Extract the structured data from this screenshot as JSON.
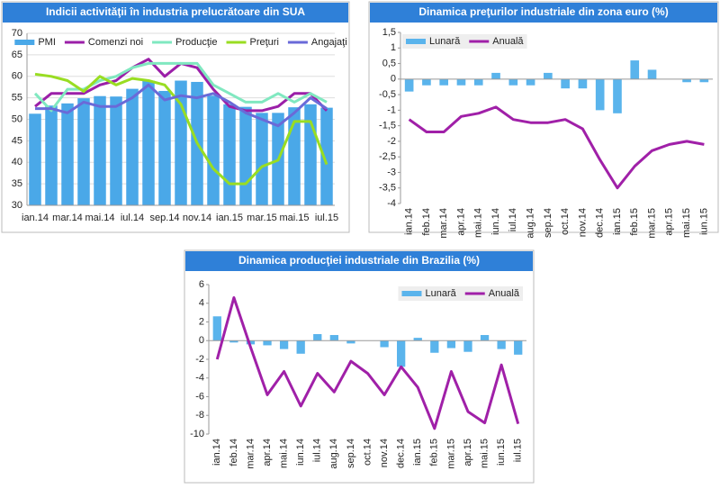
{
  "chart_data": [
    {
      "type": "combo",
      "title": "Indicii activităţii în industria prelucrătoare din SUA",
      "categories": [
        "ian.14",
        null,
        "mar.14",
        null,
        "mai.14",
        null,
        "iul.14",
        null,
        "sep.14",
        null,
        "nov.14",
        null,
        "ian.15",
        null,
        "mar.15",
        null,
        "mai.15",
        null,
        "iul.15"
      ],
      "series": [
        {
          "name": "PMI",
          "style": "bar",
          "color": "#4aa8e8",
          "values": [
            51.3,
            53.2,
            53.7,
            54.9,
            55.4,
            55.3,
            57.1,
            59.0,
            56.6,
            59.0,
            58.7,
            55.5,
            53.5,
            52.9,
            51.5,
            51.5,
            52.8,
            53.5,
            52.7
          ]
        },
        {
          "name": "Comenzi noi",
          "style": "line",
          "color": "#9b1fa8",
          "values": [
            53,
            56,
            56,
            56,
            58,
            59,
            62,
            64,
            60,
            63,
            62,
            57,
            53,
            52,
            52,
            53,
            56,
            56,
            52
          ]
        },
        {
          "name": "Producţie",
          "style": "line",
          "color": "#80e8c0",
          "values": [
            56,
            52,
            57,
            57,
            59,
            60,
            62,
            63,
            63,
            63,
            63,
            58,
            56,
            54,
            54,
            56,
            54,
            56,
            54
          ]
        },
        {
          "name": "Preţuri",
          "style": "line",
          "color": "#99dd22",
          "values": [
            60.5,
            60,
            59,
            56.5,
            60,
            58,
            59.5,
            59,
            58,
            53.5,
            44.5,
            38.5,
            35,
            35,
            39,
            40.5,
            49.5,
            49.5,
            39.5
          ]
        },
        {
          "name": "Angajaţi",
          "style": "line",
          "color": "#6a6ad8",
          "values": [
            52.5,
            52.5,
            51.5,
            54,
            53,
            53,
            55,
            58,
            54.5,
            55.5,
            55,
            56,
            54,
            51.5,
            50,
            48.5,
            51.5,
            55,
            52.5
          ]
        }
      ],
      "ylim": [
        30,
        70
      ],
      "yticks": [
        30,
        35,
        40,
        45,
        50,
        55,
        60,
        65,
        70
      ],
      "grid": true,
      "legend": "top"
    },
    {
      "type": "combo",
      "title": "Dinamica preţurilor industriale din zona euro (%)",
      "categories": [
        "ian.14",
        "feb.14",
        "mar.14",
        "apr.14",
        "mai.14",
        "iun.14",
        "iul.14",
        "aug.14",
        "sep.14",
        "oct.14",
        "nov.14",
        "dec.14",
        "ian.15",
        "feb.15",
        "mar.15",
        "apr.15",
        "mai.15",
        "iun.15"
      ],
      "series": [
        {
          "name": "Lunară",
          "style": "bar",
          "color": "#5ab4ec",
          "values": [
            -0.4,
            -0.2,
            -0.2,
            -0.2,
            -0.2,
            0.2,
            -0.2,
            -0.2,
            0.2,
            -0.3,
            -0.3,
            -1.0,
            -1.1,
            0.6,
            0.3,
            0,
            -0.1,
            -0.1
          ]
        },
        {
          "name": "Anuală",
          "style": "line",
          "color": "#a020a8",
          "values": [
            -1.3,
            -1.7,
            -1.7,
            -1.2,
            -1.1,
            -0.9,
            -1.3,
            -1.4,
            -1.4,
            -1.3,
            -1.6,
            -2.6,
            -3.5,
            -2.8,
            -2.3,
            -2.1,
            -2.0,
            -2.1
          ]
        }
      ],
      "ylim": [
        -4,
        1.5
      ],
      "yticks": [
        -4,
        {
          "value": -3.5,
          "label": "-3,5"
        },
        -3,
        {
          "value": -2.5,
          "label": "-2,5"
        },
        -2,
        {
          "value": -1.5,
          "label": "-1,5"
        },
        -1,
        {
          "value": -0.5,
          "label": "-0,5"
        },
        0,
        {
          "value": 0.5,
          "label": "0,5"
        },
        1,
        {
          "value": 1.5,
          "label": "1,5"
        }
      ],
      "grid": false,
      "legend": "top-left"
    },
    {
      "type": "combo",
      "title": "Dinamica producţiei industriale din Brazilia (%)",
      "categories": [
        "ian.14",
        "feb.14",
        "mar.14",
        "apr.14",
        "mai.14",
        "iun.14",
        "iul.14",
        "aug.14",
        "sep.14",
        "oct.14",
        "nov.14",
        "dec.14",
        "ian.15",
        "feb.15",
        "mar.15",
        "apr.15",
        "mai.15",
        "iun.15",
        "iul.15"
      ],
      "series": [
        {
          "name": "Lunară",
          "style": "bar",
          "color": "#5ab4ec",
          "values": [
            2.6,
            -0.2,
            -0.4,
            -0.5,
            -0.9,
            -1.4,
            0.7,
            0.6,
            -0.3,
            0,
            -0.7,
            -2.8,
            0.3,
            -1.3,
            -0.8,
            -1.2,
            0.6,
            -0.9,
            -1.5
          ]
        },
        {
          "name": "Anuală",
          "style": "line",
          "color": "#a020a8",
          "values": [
            -2.0,
            4.6,
            -0.7,
            -5.8,
            -3.3,
            -7.0,
            -3.5,
            -5.5,
            -2.2,
            -3.5,
            -5.8,
            -2.8,
            -5.0,
            -9.4,
            -3.3,
            -7.6,
            -8.8,
            -2.6,
            -8.9
          ]
        }
      ],
      "ylim": [
        -10,
        6
      ],
      "yticks": [
        -10,
        -8,
        -6,
        -4,
        -2,
        0,
        2,
        4,
        6
      ],
      "grid": false,
      "legend": "top-right"
    }
  ]
}
